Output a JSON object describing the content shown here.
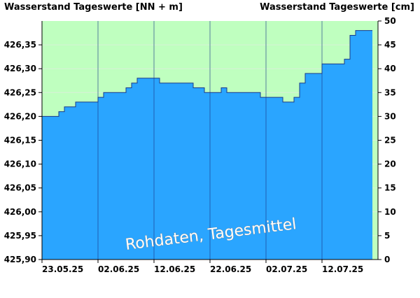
{
  "chart_data": {
    "type": "area",
    "ylabel_left": "Wasserstand Tageswerte [NN + m]",
    "ylabel_right": "Wasserstand Tageswerte [cm]",
    "annotation": "Rohdaten, Tagesmittel",
    "y_left_range": [
      425.9,
      426.4
    ],
    "y_right_range": [
      0,
      50
    ],
    "y_left_ticks": [
      "425,90",
      "425,95",
      "426,00",
      "426,05",
      "426,10",
      "426,15",
      "426,20",
      "426,25",
      "426,30",
      "426,35"
    ],
    "y_right_ticks": [
      "0",
      "5",
      "10",
      "15",
      "20",
      "25",
      "30",
      "35",
      "40",
      "45",
      "50"
    ],
    "x_ticks": [
      "23.05.25",
      "02.06.25",
      "12.06.25",
      "22.06.25",
      "02.07.25",
      "12.07.25"
    ],
    "x_range_days": [
      "23.05.25",
      "21.07.25"
    ],
    "series": [
      {
        "values": [
          426.2,
          426.2,
          426.2,
          426.21,
          426.22,
          426.22,
          426.23,
          426.23,
          426.23,
          426.23,
          426.24,
          426.25,
          426.25,
          426.25,
          426.25,
          426.26,
          426.27,
          426.28,
          426.28,
          426.28,
          426.28,
          426.27,
          426.27,
          426.27,
          426.27,
          426.27,
          426.27,
          426.26,
          426.26,
          426.25,
          426.25,
          426.25,
          426.26,
          426.25,
          426.25,
          426.25,
          426.25,
          426.25,
          426.25,
          426.24,
          426.24,
          426.24,
          426.24,
          426.23,
          426.23,
          426.24,
          426.27,
          426.29,
          426.29,
          426.29,
          426.31,
          426.31,
          426.31,
          426.31,
          426.32,
          426.37,
          426.38,
          426.38,
          426.38
        ]
      }
    ],
    "colors": {
      "fill": "#2aa5ff",
      "line": "#1a3a8a",
      "above_area": "#bfffbf",
      "grid": "#000000"
    }
  }
}
